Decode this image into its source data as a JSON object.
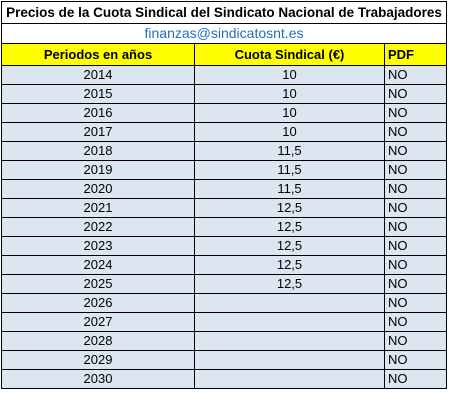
{
  "title": "Precios de la Cuota Sindical del Sindicato Nacional de Trabajadores",
  "email": "finanzas@sindicatosnt.es",
  "headers": {
    "period": "Periodos en años",
    "fee": "Cuota Sindical (€)",
    "pdf": "PDF"
  },
  "colors": {
    "header_bg": "#ffff00",
    "row_bg": "#dce6f1",
    "link": "#1f6fbf"
  },
  "rows": [
    {
      "year": "2014",
      "fee": "10",
      "pdf": "NO"
    },
    {
      "year": "2015",
      "fee": "10",
      "pdf": "NO"
    },
    {
      "year": "2016",
      "fee": "10",
      "pdf": "NO"
    },
    {
      "year": "2017",
      "fee": "10",
      "pdf": "NO"
    },
    {
      "year": "2018",
      "fee": "11,5",
      "pdf": "NO"
    },
    {
      "year": "2019",
      "fee": "11,5",
      "pdf": "NO"
    },
    {
      "year": "2020",
      "fee": "11,5",
      "pdf": "NO"
    },
    {
      "year": "2021",
      "fee": "12,5",
      "pdf": "NO"
    },
    {
      "year": "2022",
      "fee": "12,5",
      "pdf": "NO"
    },
    {
      "year": "2023",
      "fee": "12,5",
      "pdf": "NO"
    },
    {
      "year": "2024",
      "fee": "12,5",
      "pdf": "NO"
    },
    {
      "year": "2025",
      "fee": "12,5",
      "pdf": "NO"
    },
    {
      "year": "2026",
      "fee": "",
      "pdf": "NO"
    },
    {
      "year": "2027",
      "fee": "",
      "pdf": "NO"
    },
    {
      "year": "2028",
      "fee": "",
      "pdf": "NO"
    },
    {
      "year": "2029",
      "fee": "",
      "pdf": "NO"
    },
    {
      "year": "2030",
      "fee": "",
      "pdf": "NO"
    }
  ]
}
